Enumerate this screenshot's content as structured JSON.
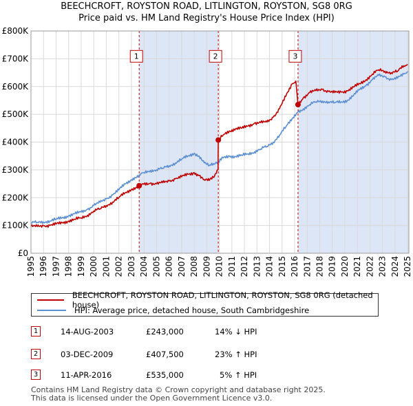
{
  "title_line1": "BEECHCROFT, ROYSTON ROAD, LITLINGTON, ROYSTON, SG8 0RG",
  "title_line2": "Price paid vs. HM Land Registry's House Price Index (HPI)",
  "colors": {
    "property": "#c00000",
    "hpi": "#5b8fd4",
    "shade": "#dde6f7",
    "marker": "#c00000"
  },
  "chart_data": {
    "type": "line",
    "title": "BEECHCROFT, ROYSTON ROAD, LITLINGTON, ROYSTON, SG8 0RG",
    "subtitle": "Price paid vs. HM Land Registry's House Price Index (HPI)",
    "xlim": [
      1995.0,
      2025.1
    ],
    "ylim": [
      0,
      800000
    ],
    "y_ticks": [
      0,
      100000,
      200000,
      300000,
      400000,
      500000,
      600000,
      700000,
      800000
    ],
    "y_tick_labels": [
      "£0",
      "£100K",
      "£200K",
      "£300K",
      "£400K",
      "£500K",
      "£600K",
      "£700K",
      "£800K"
    ],
    "x_ticks": [
      "1995",
      "1996",
      "1997",
      "1998",
      "1999",
      "2000",
      "2001",
      "2002",
      "2003",
      "2004",
      "2005",
      "2006",
      "2007",
      "2008",
      "2009",
      "2010",
      "2011",
      "2012",
      "2013",
      "2014",
      "2015",
      "2016",
      "2017",
      "2018",
      "2019",
      "2020",
      "2021",
      "2022",
      "2023",
      "2024",
      "2025"
    ],
    "grid": true,
    "series": [
      {
        "name": "BEECHCROFT, ROYSTON ROAD, LITLINGTON, ROYSTON, SG8 0RG (detached house)",
        "points": [
          [
            1995.0,
            97000
          ],
          [
            1995.5,
            96000
          ],
          [
            1996.0,
            99000
          ],
          [
            1996.5,
            100000
          ],
          [
            1997.0,
            105000
          ],
          [
            1997.5,
            110000
          ],
          [
            1998.0,
            116000
          ],
          [
            1998.5,
            122000
          ],
          [
            1999.0,
            127000
          ],
          [
            1999.5,
            137000
          ],
          [
            2000.0,
            152000
          ],
          [
            2000.5,
            160000
          ],
          [
            2001.0,
            172000
          ],
          [
            2001.5,
            184000
          ],
          [
            2002.0,
            200000
          ],
          [
            2002.5,
            218000
          ],
          [
            2003.0,
            230000
          ],
          [
            2003.62,
            243000
          ],
          [
            2004.0,
            248000
          ],
          [
            2004.5,
            252000
          ],
          [
            2005.0,
            250000
          ],
          [
            2005.5,
            254000
          ],
          [
            2006.0,
            260000
          ],
          [
            2006.5,
            268000
          ],
          [
            2007.0,
            275000
          ],
          [
            2007.5,
            284000
          ],
          [
            2008.0,
            290000
          ],
          [
            2008.4,
            280000
          ],
          [
            2008.8,
            265000
          ],
          [
            2009.2,
            262000
          ],
          [
            2009.6,
            275000
          ],
          [
            2009.9,
            300000
          ],
          [
            2009.92,
            407500
          ],
          [
            2010.3,
            425000
          ],
          [
            2010.8,
            440000
          ],
          [
            2011.3,
            448000
          ],
          [
            2011.8,
            450000
          ],
          [
            2012.3,
            458000
          ],
          [
            2012.8,
            468000
          ],
          [
            2013.3,
            470000
          ],
          [
            2013.8,
            472000
          ],
          [
            2014.3,
            490000
          ],
          [
            2014.8,
            520000
          ],
          [
            2015.3,
            565000
          ],
          [
            2015.8,
            610000
          ],
          [
            2016.1,
            620000
          ],
          [
            2016.27,
            535000
          ],
          [
            2016.7,
            560000
          ],
          [
            2017.2,
            578000
          ],
          [
            2017.7,
            585000
          ],
          [
            2018.2,
            590000
          ],
          [
            2018.7,
            582000
          ],
          [
            2019.2,
            578000
          ],
          [
            2019.7,
            580000
          ],
          [
            2020.2,
            585000
          ],
          [
            2020.7,
            598000
          ],
          [
            2021.2,
            610000
          ],
          [
            2021.7,
            625000
          ],
          [
            2022.2,
            645000
          ],
          [
            2022.7,
            660000
          ],
          [
            2023.2,
            655000
          ],
          [
            2023.7,
            650000
          ],
          [
            2024.2,
            655000
          ],
          [
            2024.7,
            675000
          ],
          [
            2025.0,
            680000
          ]
        ]
      },
      {
        "name": "HPI: Average price, detached house, South Cambridgeshire",
        "points": [
          [
            1995.0,
            110000
          ],
          [
            1995.5,
            111000
          ],
          [
            1996.0,
            113000
          ],
          [
            1996.5,
            116000
          ],
          [
            1997.0,
            122000
          ],
          [
            1997.5,
            128000
          ],
          [
            1998.0,
            135000
          ],
          [
            1998.5,
            142000
          ],
          [
            1999.0,
            148000
          ],
          [
            1999.5,
            158000
          ],
          [
            2000.0,
            172000
          ],
          [
            2000.5,
            183000
          ],
          [
            2001.0,
            196000
          ],
          [
            2001.5,
            210000
          ],
          [
            2002.0,
            228000
          ],
          [
            2002.5,
            250000
          ],
          [
            2003.0,
            265000
          ],
          [
            2003.62,
            282000
          ],
          [
            2004.0,
            290000
          ],
          [
            2004.5,
            298000
          ],
          [
            2005.0,
            300000
          ],
          [
            2005.5,
            306000
          ],
          [
            2006.0,
            315000
          ],
          [
            2006.5,
            325000
          ],
          [
            2007.0,
            338000
          ],
          [
            2007.5,
            350000
          ],
          [
            2008.0,
            360000
          ],
          [
            2008.4,
            350000
          ],
          [
            2008.8,
            325000
          ],
          [
            2009.2,
            315000
          ],
          [
            2009.6,
            320000
          ],
          [
            2009.92,
            330000
          ],
          [
            2010.3,
            343000
          ],
          [
            2010.8,
            350000
          ],
          [
            2011.3,
            348000
          ],
          [
            2011.8,
            352000
          ],
          [
            2012.3,
            358000
          ],
          [
            2012.8,
            365000
          ],
          [
            2013.3,
            375000
          ],
          [
            2013.8,
            385000
          ],
          [
            2014.3,
            400000
          ],
          [
            2014.8,
            425000
          ],
          [
            2015.3,
            455000
          ],
          [
            2015.8,
            485000
          ],
          [
            2016.27,
            508000
          ],
          [
            2016.7,
            520000
          ],
          [
            2017.2,
            535000
          ],
          [
            2017.7,
            545000
          ],
          [
            2018.2,
            548000
          ],
          [
            2018.7,
            545000
          ],
          [
            2019.2,
            542000
          ],
          [
            2019.7,
            545000
          ],
          [
            2020.2,
            550000
          ],
          [
            2020.7,
            568000
          ],
          [
            2021.2,
            590000
          ],
          [
            2021.7,
            605000
          ],
          [
            2022.2,
            625000
          ],
          [
            2022.7,
            640000
          ],
          [
            2023.2,
            635000
          ],
          [
            2023.7,
            625000
          ],
          [
            2024.2,
            630000
          ],
          [
            2024.7,
            645000
          ],
          [
            2025.0,
            655000
          ]
        ]
      }
    ],
    "shaded_ranges": [
      [
        2003.62,
        2009.92
      ],
      [
        2016.27,
        2025.1
      ]
    ],
    "events": [
      {
        "label": "1",
        "x": 2003.62,
        "value": 243000
      },
      {
        "label": "2",
        "x": 2009.92,
        "value": 407500
      },
      {
        "label": "3",
        "x": 2016.27,
        "value": 535000
      }
    ],
    "event_box_value": 710000
  },
  "legend": {
    "property_label": "BEECHCROFT, ROYSTON ROAD, LITLINGTON, ROYSTON, SG8 0RG (detached house)",
    "hpi_label": "HPI: Average price, detached house, South Cambridgeshire"
  },
  "transactions": [
    {
      "num": "1",
      "date": "14-AUG-2003",
      "price": "£243,000",
      "hpi": "14% ↓ HPI"
    },
    {
      "num": "2",
      "date": "03-DEC-2009",
      "price": "£407,500",
      "hpi": "23% ↑ HPI"
    },
    {
      "num": "3",
      "date": "11-APR-2016",
      "price": "£535,000",
      "hpi": "5% ↑ HPI"
    }
  ],
  "footer_line1": "Contains HM Land Registry data © Crown copyright and database right 2025.",
  "footer_line2": "This data is licensed under the Open Government Licence v3.0."
}
